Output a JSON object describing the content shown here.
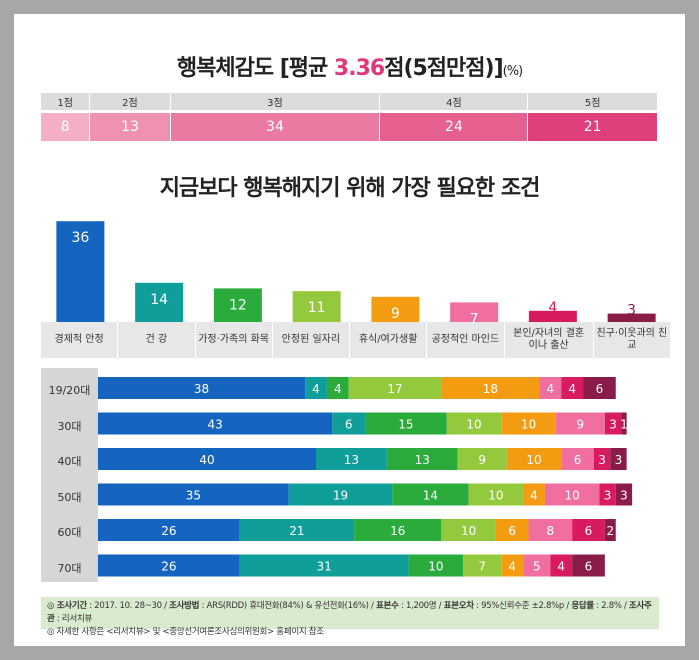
{
  "title": {
    "prefix": "행복체감도 [평균 ",
    "accent": "3.36",
    "suffix": "점(5점만점)]",
    "unit": "(%)"
  },
  "scale": {
    "labels": [
      "1점",
      "2점",
      "3점",
      "4점",
      "5점"
    ],
    "values": [
      8,
      13,
      34,
      24,
      21
    ],
    "colors": [
      "#f4aec6",
      "#ef92b2",
      "#ea7aa2",
      "#e55f8f",
      "#df3f7b"
    ]
  },
  "subtitle": "지금보다 행복해지기 위해 가장 필요한 조건",
  "colors": [
    "#1565c0",
    "#0f9e9a",
    "#2aab3c",
    "#94c83d",
    "#f39c12",
    "#f06ea0",
    "#d81b60",
    "#8a1c4a"
  ],
  "chart_data": [
    {
      "type": "bar",
      "categories": [
        "경제적 안정",
        "건  강",
        "가정·가족의 화목",
        "안정된 일자리",
        "휴식/여가생활",
        "공정적인 마인드",
        "본인/자녀의 결혼이나 출산",
        "친구·이웃과의 친교"
      ],
      "values": [
        36,
        14,
        12,
        11,
        9,
        7,
        4,
        3
      ],
      "labels": [
        "36",
        "14",
        "12",
        "11",
        "9",
        "7",
        "4",
        "3"
      ]
    },
    {
      "type": "bar",
      "stacked": true,
      "orientation": "horizontal",
      "categories": [
        "19/20대",
        "30대",
        "40대",
        "50대",
        "60대",
        "70대"
      ],
      "series": [
        {
          "values": [
            38,
            43,
            40,
            35,
            26,
            26
          ],
          "labels": [
            "38",
            "43",
            "40",
            "35",
            "26",
            "26"
          ]
        },
        {
          "values": [
            4,
            6,
            13,
            19,
            21,
            31
          ],
          "labels": [
            "4",
            "6",
            "13",
            "19",
            "21",
            "31"
          ]
        },
        {
          "values": [
            4,
            15,
            13,
            14,
            16,
            10
          ],
          "labels": [
            "4",
            "15",
            "13",
            "14",
            "16",
            "10"
          ]
        },
        {
          "values": [
            17,
            10,
            9,
            10,
            10,
            7
          ],
          "labels": [
            "17",
            "10",
            "9",
            "10",
            "10",
            "7"
          ]
        },
        {
          "values": [
            18,
            10,
            10,
            4,
            6,
            4
          ],
          "labels": [
            "18",
            "10",
            "10",
            "4",
            "6",
            "4"
          ]
        },
        {
          "values": [
            4,
            9,
            6,
            10,
            8,
            5
          ],
          "labels": [
            "4",
            "9",
            "6",
            "10",
            "8",
            "5"
          ]
        },
        {
          "values": [
            4,
            3,
            3,
            3,
            6,
            4
          ],
          "labels": [
            "4",
            "3",
            "3",
            "3",
            "6",
            "4"
          ]
        },
        {
          "values": [
            6,
            1,
            3,
            3,
            2,
            6
          ],
          "labels": [
            "6",
            "1",
            "3",
            "3",
            "2",
            "6"
          ]
        }
      ]
    }
  ],
  "footer": {
    "line1": [
      {
        "b": "◎ 조사기간",
        "t": " : 2017. 10. 28~30 / "
      },
      {
        "b": "조사방법",
        "t": " : ARS(RDD) 휴대전화(84%) & 유선전화(16%) / "
      },
      {
        "b": "표본수",
        "t": " : 1,200명 / "
      },
      {
        "b": "표본오차",
        "t": " : 95%신뢰수준 ±2.8%p / "
      },
      {
        "b": "응답률",
        "t": " : 2.8% / "
      },
      {
        "b": "조사주관",
        "t": " : 리서치뷰"
      }
    ],
    "line2": "◎ 자세한 사항은 <리서치뷰> 및 <중앙선거여론조사심의위원회> 홈페이지 참조"
  }
}
